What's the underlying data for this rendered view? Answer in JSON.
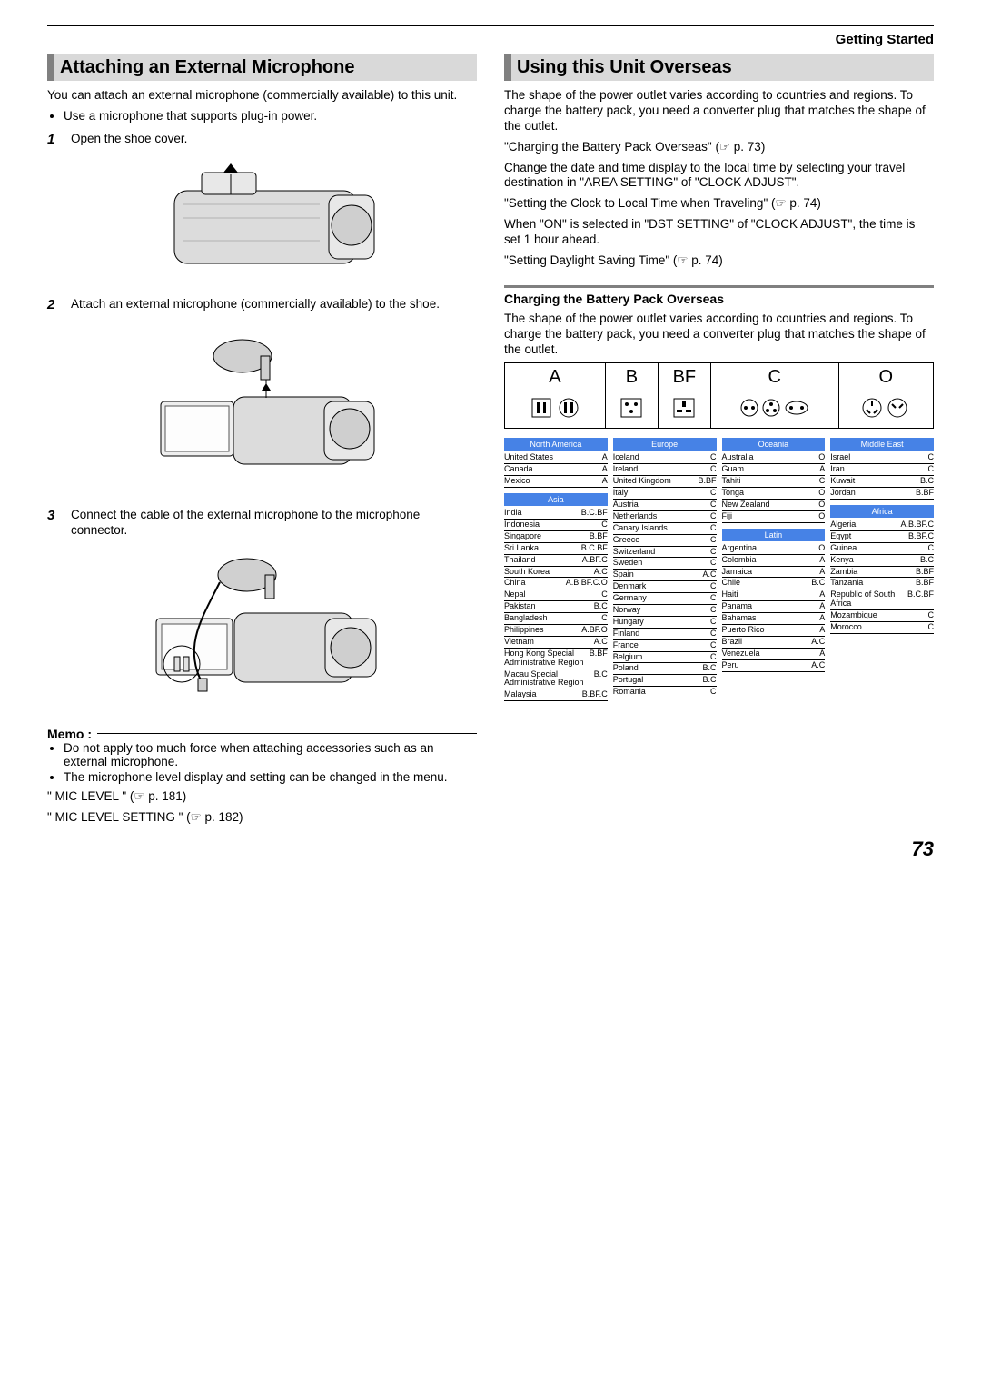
{
  "header": {
    "section": "Getting Started"
  },
  "left": {
    "title": "Attaching an External Microphone",
    "intro": "You can attach an external microphone (commercially available) to this unit.",
    "bullets": [
      "Use a microphone that supports plug-in power."
    ],
    "steps": [
      {
        "n": "1",
        "text": "Open the shoe cover."
      },
      {
        "n": "2",
        "text": "Attach an external microphone (commercially available) to the shoe."
      },
      {
        "n": "3",
        "text": "Connect the cable of the external microphone to the microphone connector."
      }
    ],
    "memo_label": "Memo :",
    "memo_bullets": [
      "Do not apply too much force when attaching accessories such as an external microphone.",
      "The microphone level display and setting can be changed in the menu."
    ],
    "memo_refs": [
      "\" MIC LEVEL \" (☞ p. 181)",
      "\" MIC LEVEL SETTING \" (☞ p. 182)"
    ]
  },
  "right": {
    "title": "Using this Unit Overseas",
    "paras": [
      "The shape of the power outlet varies according to countries and regions. To charge the battery pack, you need a converter plug that matches the shape of the outlet.",
      "\"Charging the Battery Pack Overseas\" (☞ p. 73)",
      "Change the date and time display to the local time by selecting your travel destination in \"AREA SETTING\" of \"CLOCK ADJUST\".",
      "\"Setting the Clock to Local Time when Traveling\" (☞ p. 74)",
      "When \"ON\" is selected in \"DST SETTING\" of \"CLOCK ADJUST\", the time is set 1 hour ahead.",
      "\"Setting Daylight Saving Time\" (☞ p. 74)"
    ],
    "sub_title": "Charging the Battery Pack Overseas",
    "sub_intro": "The shape of the power outlet varies according to countries and regions. To charge the battery pack, you need a converter plug that matches the shape of the outlet.",
    "plug_letters": [
      "A",
      "B",
      "BF",
      "C",
      "O"
    ],
    "regions": {
      "col1": [
        {
          "header": "North America",
          "rows": [
            {
              "c": "United States",
              "t": "A"
            },
            {
              "c": "Canada",
              "t": "A"
            },
            {
              "c": "Mexico",
              "t": "A"
            }
          ]
        },
        {
          "header": "Asia",
          "rows": [
            {
              "c": "India",
              "t": "B.C.BF"
            },
            {
              "c": "Indonesia",
              "t": "C"
            },
            {
              "c": "Singapore",
              "t": "B.BF"
            },
            {
              "c": "Sri Lanka",
              "t": "B.C.BF"
            },
            {
              "c": "Thailand",
              "t": "A.BF.C"
            },
            {
              "c": "South Korea",
              "t": "A.C"
            },
            {
              "c": "China",
              "t": "A.B.BF.C.O"
            },
            {
              "c": "Nepal",
              "t": "C"
            },
            {
              "c": "Pakistan",
              "t": "B.C"
            },
            {
              "c": "Bangladesh",
              "t": "C"
            },
            {
              "c": "Philippines",
              "t": "A.BF.O"
            },
            {
              "c": "Vietnam",
              "t": "A.C"
            },
            {
              "c": "Hong Kong Special Administrative Region",
              "t": "B.BF"
            },
            {
              "c": "Macau Special Administrative Region",
              "t": "B.C"
            },
            {
              "c": "Malaysia",
              "t": "B.BF.C"
            }
          ]
        }
      ],
      "col2": [
        {
          "header": "Europe",
          "rows": [
            {
              "c": "Iceland",
              "t": "C"
            },
            {
              "c": "Ireland",
              "t": "C"
            },
            {
              "c": "United Kingdom",
              "t": "B.BF"
            },
            {
              "c": "Italy",
              "t": "C"
            },
            {
              "c": "Austria",
              "t": "C"
            },
            {
              "c": "Netherlands",
              "t": "C"
            },
            {
              "c": "Canary Islands",
              "t": "C"
            },
            {
              "c": "Greece",
              "t": "C"
            },
            {
              "c": "Switzerland",
              "t": "C"
            },
            {
              "c": "Sweden",
              "t": "C"
            },
            {
              "c": "Spain",
              "t": "A.C"
            },
            {
              "c": "Denmark",
              "t": "C"
            },
            {
              "c": "Germany",
              "t": "C"
            },
            {
              "c": "Norway",
              "t": "C"
            },
            {
              "c": "Hungary",
              "t": "C"
            },
            {
              "c": "Finland",
              "t": "C"
            },
            {
              "c": "France",
              "t": "C"
            },
            {
              "c": "Belgium",
              "t": "C"
            },
            {
              "c": "Poland",
              "t": "B.C"
            },
            {
              "c": "Portugal",
              "t": "B.C"
            },
            {
              "c": "Romania",
              "t": "C"
            }
          ]
        }
      ],
      "col3": [
        {
          "header": "Oceania",
          "rows": [
            {
              "c": "Australia",
              "t": "O"
            },
            {
              "c": "Guam",
              "t": "A"
            },
            {
              "c": "Tahiti",
              "t": "C"
            },
            {
              "c": "Tonga",
              "t": "O"
            },
            {
              "c": "New Zealand",
              "t": "O"
            },
            {
              "c": "Fiji",
              "t": "O"
            }
          ]
        },
        {
          "header": "Latin",
          "rows": [
            {
              "c": "Argentina",
              "t": "O"
            },
            {
              "c": "Colombia",
              "t": "A"
            },
            {
              "c": "Jamaica",
              "t": "A"
            },
            {
              "c": "Chile",
              "t": "B.C"
            },
            {
              "c": "Haiti",
              "t": "A"
            },
            {
              "c": "Panama",
              "t": "A"
            },
            {
              "c": "Bahamas",
              "t": "A"
            },
            {
              "c": "Puerto Rico",
              "t": "A"
            },
            {
              "c": "Brazil",
              "t": "A.C"
            },
            {
              "c": "Venezuela",
              "t": "A"
            },
            {
              "c": "Peru",
              "t": "A.C"
            }
          ]
        }
      ],
      "col4": [
        {
          "header": "Middle East",
          "rows": [
            {
              "c": "Israel",
              "t": "C"
            },
            {
              "c": "Iran",
              "t": "C"
            },
            {
              "c": "Kuwait",
              "t": "B.C"
            },
            {
              "c": "Jordan",
              "t": "B.BF"
            }
          ]
        },
        {
          "header": "Africa",
          "rows": [
            {
              "c": "Algeria",
              "t": "A.B.BF.C"
            },
            {
              "c": "Egypt",
              "t": "B.BF.C"
            },
            {
              "c": "Guinea",
              "t": "C"
            },
            {
              "c": "Kenya",
              "t": "B.C"
            },
            {
              "c": "Zambia",
              "t": "B.BF"
            },
            {
              "c": "Tanzania",
              "t": "B.BF"
            },
            {
              "c": "Republic of South Africa",
              "t": "B.C.BF"
            },
            {
              "c": "Mozambique",
              "t": "C"
            },
            {
              "c": "Morocco",
              "t": "C"
            }
          ]
        }
      ]
    }
  },
  "page_number": "73",
  "colors": {
    "section_bg": "#d9d9d9",
    "section_bar": "#808080",
    "region_header_bg": "#4682e6",
    "region_header_fg": "#ffffff"
  }
}
